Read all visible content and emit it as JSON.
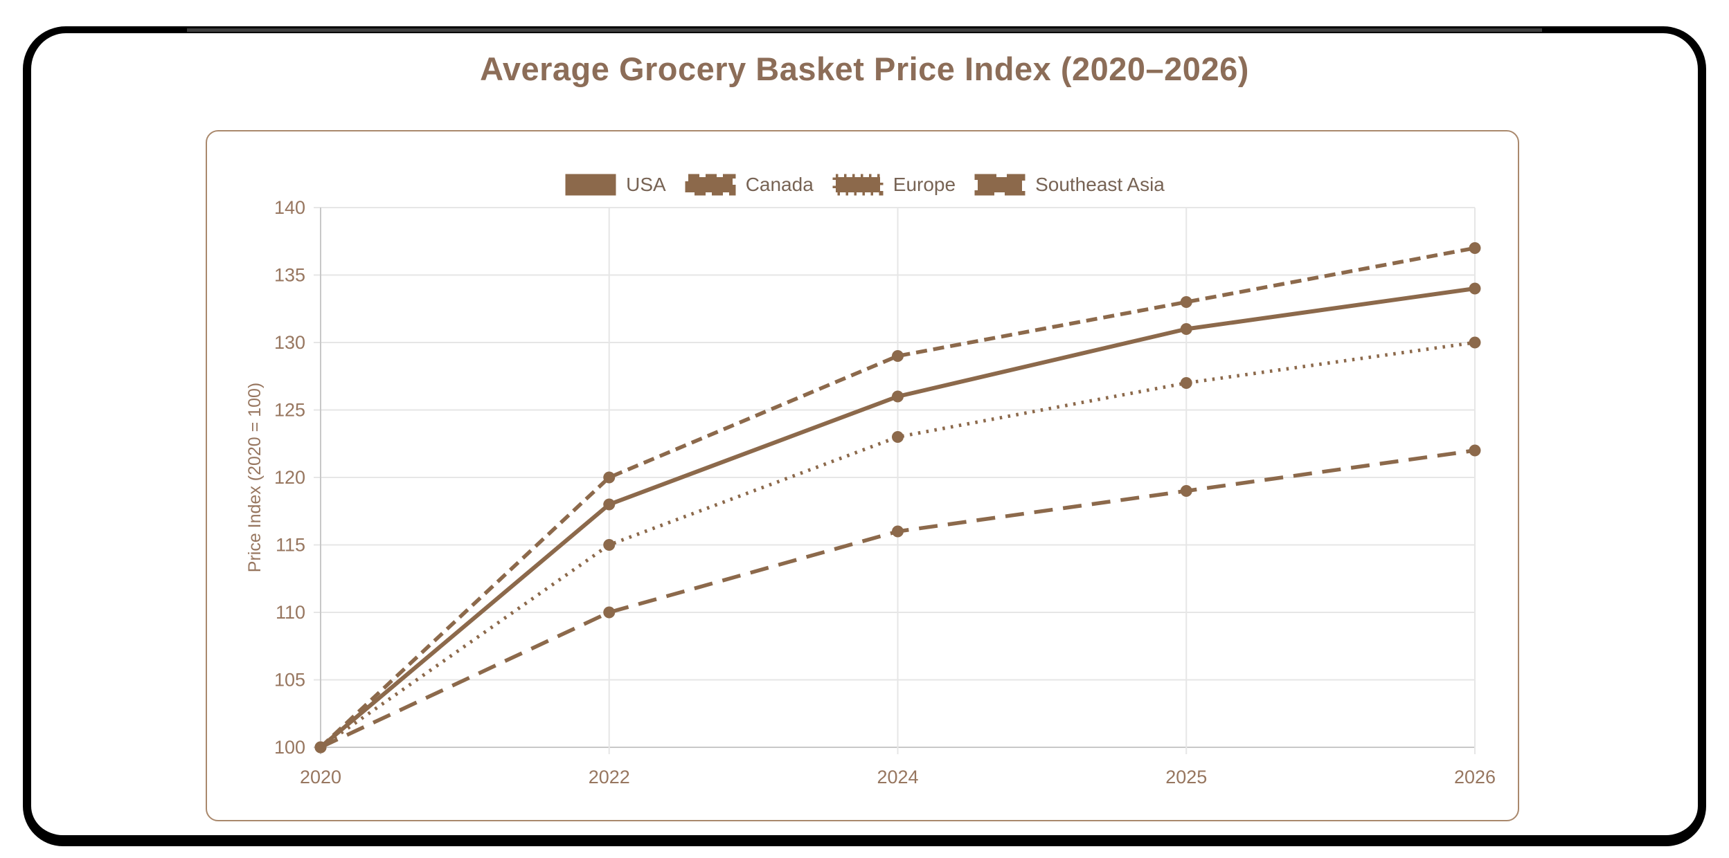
{
  "title": "Average Grocery Basket Price Index (2020–2026)",
  "colors": {
    "series_brown": "#8C694B",
    "title_text": "#8c6d58",
    "tick_text": "#97765f",
    "legend_text": "#776354",
    "grid_line": "#e6e6e6",
    "axis_line": "#c8c8c8",
    "card_border": "#a9886c",
    "frame_black": "#000000",
    "frame_gray": "#3e3e3e"
  },
  "chart_data": {
    "type": "line",
    "title": "Average Grocery Basket Price Index (2020–2026)",
    "categories": [
      "2020",
      "2022",
      "2024",
      "2025",
      "2026"
    ],
    "series": [
      {
        "name": "USA",
        "style": "solid",
        "values": [
          100,
          118,
          126,
          131,
          134
        ]
      },
      {
        "name": "Canada",
        "style": "dashed",
        "values": [
          100,
          120,
          129,
          133,
          137
        ]
      },
      {
        "name": "Europe",
        "style": "dotted",
        "values": [
          100,
          115,
          123,
          127,
          130
        ]
      },
      {
        "name": "Southeast Asia",
        "style": "long-dash",
        "values": [
          100,
          110,
          116,
          119,
          122
        ]
      }
    ],
    "xlabel": "",
    "ylabel": "Price Index (2020 = 100)",
    "ylim": [
      100,
      140
    ],
    "ytick_step": 5,
    "yticks": [
      100,
      105,
      110,
      115,
      120,
      125,
      130,
      135,
      140
    ],
    "legend_position": "top",
    "grid": true,
    "line_color": "#8C694B",
    "point_color": "#8C694B"
  }
}
